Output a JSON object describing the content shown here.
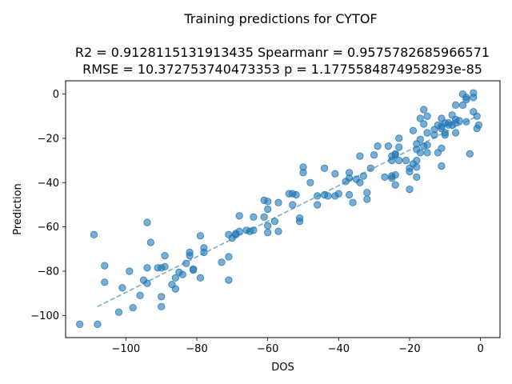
{
  "figure": {
    "title": "Training predictions for CYTOF",
    "stats_line1": "R2 = 0.9128115131913435 Spearmanr = 0.9575782685966571",
    "stats_line2": "RMSE = 10.372753740473353 p = 1.1775584874958293e-85"
  },
  "chart_data": {
    "type": "scatter",
    "xlabel": "DOS",
    "ylabel": "Prediction",
    "xlim": [
      -117,
      5.5
    ],
    "ylim": [
      -110,
      6
    ],
    "xticks": [
      -100,
      -80,
      -60,
      -40,
      -20,
      0
    ],
    "yticks": [
      -100,
      -80,
      -60,
      -40,
      -20,
      0
    ],
    "grid": false,
    "point_color": "#1f77b4",
    "point_alpha": 0.6,
    "trend_line": {
      "style": "dashed",
      "color": "#1f77b4",
      "x": [
        -108,
        -1
      ],
      "y": [
        -96,
        -10
      ]
    },
    "points": [
      [
        -113,
        -104
      ],
      [
        -108,
        -104
      ],
      [
        -109,
        -63.5
      ],
      [
        -106,
        -77.5
      ],
      [
        -106,
        -85
      ],
      [
        -102,
        -98.5
      ],
      [
        -101,
        -87.5
      ],
      [
        -99,
        -80
      ],
      [
        -98,
        -96.5
      ],
      [
        -96,
        -91
      ],
      [
        -95,
        -84
      ],
      [
        -94,
        -58
      ],
      [
        -94,
        -78.5
      ],
      [
        -94,
        -85.5
      ],
      [
        -93,
        -67
      ],
      [
        -91,
        -78.5
      ],
      [
        -90,
        -78.5
      ],
      [
        -90,
        -91.5
      ],
      [
        -90,
        -96
      ],
      [
        -89,
        -78
      ],
      [
        -89,
        -73
      ],
      [
        -87,
        -86
      ],
      [
        -86,
        -83
      ],
      [
        -86,
        -88
      ],
      [
        -85,
        -80.5
      ],
      [
        -84,
        -81.5
      ],
      [
        -83,
        -76.5
      ],
      [
        -82,
        -73
      ],
      [
        -82,
        -71.5
      ],
      [
        -81,
        -79
      ],
      [
        -81,
        -79.5
      ],
      [
        -79,
        -64
      ],
      [
        -79,
        -83
      ],
      [
        -78,
        -71.5
      ],
      [
        -78,
        -69.5
      ],
      [
        -73,
        -76
      ],
      [
        -71,
        -84
      ],
      [
        -71,
        -73.5
      ],
      [
        -71,
        -63.5
      ],
      [
        -70,
        -65
      ],
      [
        -69,
        -63.5
      ],
      [
        -69,
        -63
      ],
      [
        -68,
        -62
      ],
      [
        -68,
        -55
      ],
      [
        -66,
        -61.5
      ],
      [
        -65,
        -62
      ],
      [
        -64,
        -61.5
      ],
      [
        -64,
        -55.5
      ],
      [
        -61,
        -48
      ],
      [
        -61,
        -55.5
      ],
      [
        -60,
        -48.5
      ],
      [
        -60,
        -52
      ],
      [
        -60,
        -59.5
      ],
      [
        -60,
        -62.5
      ],
      [
        -58,
        -57.5
      ],
      [
        -57,
        -62
      ],
      [
        -57,
        -49
      ],
      [
        -54,
        -45
      ],
      [
        -53,
        -45
      ],
      [
        -53,
        -50
      ],
      [
        -52,
        -45.5
      ],
      [
        -51,
        -56
      ],
      [
        -51,
        -57.5
      ],
      [
        -50,
        -33
      ],
      [
        -50,
        -35.5
      ],
      [
        -48,
        -40
      ],
      [
        -46,
        -46
      ],
      [
        -46,
        -50
      ],
      [
        -44,
        -33.5
      ],
      [
        -44,
        -45.5
      ],
      [
        -43,
        -46
      ],
      [
        -41,
        -36
      ],
      [
        -41,
        -46
      ],
      [
        -40,
        -45
      ],
      [
        -38,
        -39.5
      ],
      [
        -37,
        -35.5
      ],
      [
        -37,
        -38
      ],
      [
        -37,
        -45.5
      ],
      [
        -36,
        -49
      ],
      [
        -35,
        -38.5
      ],
      [
        -34,
        -40
      ],
      [
        -34,
        -28
      ],
      [
        -33,
        -37
      ],
      [
        -32,
        -44.5
      ],
      [
        -32,
        -47.5
      ],
      [
        -31,
        -33.5
      ],
      [
        -30,
        -27.5
      ],
      [
        -29,
        -23.5
      ],
      [
        -27,
        -37.5
      ],
      [
        -26,
        -23.5
      ],
      [
        -25,
        -28
      ],
      [
        -25,
        -30
      ],
      [
        -25,
        -37
      ],
      [
        -25,
        -38
      ],
      [
        -24,
        -36.5
      ],
      [
        -24,
        -41
      ],
      [
        -24,
        -27.5
      ],
      [
        -24,
        -27
      ],
      [
        -23,
        -20
      ],
      [
        -23,
        -24
      ],
      [
        -23,
        -30
      ],
      [
        -21,
        -30
      ],
      [
        -20,
        -33.5
      ],
      [
        -20,
        -35
      ],
      [
        -20,
        -43
      ],
      [
        -19,
        -16.5
      ],
      [
        -19,
        -31.5
      ],
      [
        -18,
        -22.5
      ],
      [
        -18,
        -25
      ],
      [
        -18,
        -30
      ],
      [
        -18,
        -33
      ],
      [
        -18,
        -37.5
      ],
      [
        -17,
        -11
      ],
      [
        -17,
        -20.5
      ],
      [
        -17,
        -26.5
      ],
      [
        -16,
        -7
      ],
      [
        -16,
        -13.5
      ],
      [
        -16,
        -23.5
      ],
      [
        -15,
        -10
      ],
      [
        -15,
        -17.5
      ],
      [
        -15,
        -23
      ],
      [
        -15,
        -26.5
      ],
      [
        -13,
        -16
      ],
      [
        -13,
        -18.5
      ],
      [
        -12,
        -14
      ],
      [
        -12,
        -26.5
      ],
      [
        -11,
        -11
      ],
      [
        -11,
        -14.5
      ],
      [
        -11,
        -15.5
      ],
      [
        -11,
        -24.5
      ],
      [
        -11,
        -32.5
      ],
      [
        -10,
        -13
      ],
      [
        -10,
        -17.5
      ],
      [
        -10,
        -18.5
      ],
      [
        -9,
        -13
      ],
      [
        -9,
        -14
      ],
      [
        -8,
        -9.5
      ],
      [
        -8,
        -14
      ],
      [
        -7,
        -5
      ],
      [
        -7,
        -11.5
      ],
      [
        -7,
        -13
      ],
      [
        -7,
        -17.5
      ],
      [
        -6,
        -12
      ],
      [
        -5,
        0
      ],
      [
        -5,
        -5
      ],
      [
        -4,
        -1.5
      ],
      [
        -4,
        -2.5
      ],
      [
        -4,
        -12.5
      ],
      [
        -3,
        -27
      ],
      [
        -2,
        0.5
      ],
      [
        -2,
        -1.5
      ],
      [
        -2,
        -8
      ],
      [
        -1,
        -10
      ],
      [
        -1,
        -15.5
      ],
      [
        -0.5,
        -14
      ]
    ]
  }
}
